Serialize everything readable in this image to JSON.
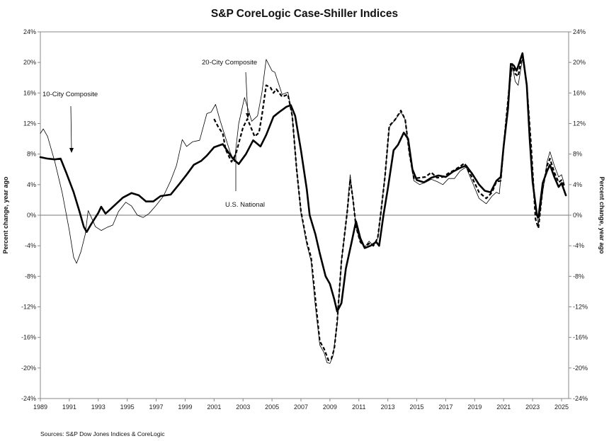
{
  "chart_data": {
    "type": "line",
    "title": "S&P CoreLogic Case-Shiller Indices",
    "ylabel": "Percent change, year ago",
    "ylabel_right": "Percent change, year ago",
    "source": "Sources: S&P Dow Jones Indices & CoreLogic",
    "xlim": [
      1989,
      2025.5
    ],
    "ylim": [
      -24,
      24
    ],
    "x_ticks": [
      "1989",
      "1991",
      "1993",
      "1995",
      "1997",
      "1999",
      "2001",
      "2003",
      "2005",
      "2007",
      "2009",
      "2011",
      "2013",
      "2015",
      "2017",
      "2019",
      "2021",
      "2023",
      "2025"
    ],
    "y_ticks": [
      "24%",
      "20%",
      "16%",
      "12%",
      "8%",
      "4%",
      "0%",
      "-4%",
      "-8%",
      "-12%",
      "-16%",
      "-20%",
      "-24%"
    ],
    "grid": false,
    "zero_line": true,
    "annotations": [
      {
        "text": "10-City Composite",
        "series": "10-City Composite"
      },
      {
        "text": "20-City Composite",
        "series": "20-City Composite"
      },
      {
        "text": "U.S. National",
        "series": "U.S. National"
      }
    ],
    "series": [
      {
        "name": "U.S. National",
        "style": "thick-solid",
        "color": "#000000",
        "points": [
          [
            1989,
            7.6
          ],
          [
            1989.5,
            7.4
          ],
          [
            1990,
            7.3
          ],
          [
            1990.4,
            7.4
          ],
          [
            1990.8,
            5.5
          ],
          [
            1991.3,
            3
          ],
          [
            1991.7,
            0.5
          ],
          [
            1992,
            -1.5
          ],
          [
            1992.2,
            -2.2
          ],
          [
            1992.5,
            -1.2
          ],
          [
            1993,
            0.3
          ],
          [
            1993.2,
            1.1
          ],
          [
            1993.5,
            0.2
          ],
          [
            1993.9,
            0.9
          ],
          [
            1994.3,
            1.6
          ],
          [
            1994.7,
            2.3
          ],
          [
            1995.3,
            2.9
          ],
          [
            1995.8,
            2.6
          ],
          [
            1996.3,
            1.8
          ],
          [
            1996.8,
            1.8
          ],
          [
            1997.3,
            2.5
          ],
          [
            1998,
            2.7
          ],
          [
            1998.6,
            4.1
          ],
          [
            1999.1,
            5.3
          ],
          [
            1999.6,
            6.6
          ],
          [
            2000.1,
            7.1
          ],
          [
            2000.5,
            7.8
          ],
          [
            2001,
            8.9
          ],
          [
            2001.6,
            9.3
          ],
          [
            2002,
            8.2
          ],
          [
            2002.3,
            7.4
          ],
          [
            2002.7,
            6.7
          ],
          [
            2003.2,
            8.0
          ],
          [
            2003.7,
            9.8
          ],
          [
            2004.2,
            9.0
          ],
          [
            2004.6,
            10.5
          ],
          [
            2005.1,
            12.9
          ],
          [
            2005.5,
            13.5
          ],
          [
            2006,
            14.2
          ],
          [
            2006.3,
            14.4
          ],
          [
            2006.6,
            13
          ],
          [
            2007,
            8.5
          ],
          [
            2007.4,
            3.4
          ],
          [
            2007.6,
            0
          ],
          [
            2008,
            -2.5
          ],
          [
            2008.3,
            -5
          ],
          [
            2008.7,
            -8
          ],
          [
            2009,
            -9
          ],
          [
            2009.3,
            -11
          ],
          [
            2009.5,
            -12.6
          ],
          [
            2009.8,
            -11.5
          ],
          [
            2010.1,
            -7
          ],
          [
            2010.5,
            -3.5
          ],
          [
            2010.8,
            -0.8
          ],
          [
            2011.1,
            -3
          ],
          [
            2011.4,
            -4.3
          ],
          [
            2011.8,
            -4
          ],
          [
            2012.2,
            -3.5
          ],
          [
            2012.4,
            -4
          ],
          [
            2012.7,
            0
          ],
          [
            2013,
            3.5
          ],
          [
            2013.4,
            8.5
          ],
          [
            2013.7,
            9.2
          ],
          [
            2014.1,
            10.8
          ],
          [
            2014.4,
            10
          ],
          [
            2014.7,
            6
          ],
          [
            2015,
            4.6
          ],
          [
            2015.5,
            4.3
          ],
          [
            2016,
            4.9
          ],
          [
            2016.5,
            5.2
          ],
          [
            2017,
            5.0
          ],
          [
            2017.5,
            5.7
          ],
          [
            2018,
            6.2
          ],
          [
            2018.4,
            6.5
          ],
          [
            2018.8,
            5.5
          ],
          [
            2019.3,
            4.0
          ],
          [
            2019.7,
            3.2
          ],
          [
            2020.1,
            3.0
          ],
          [
            2020.5,
            4.5
          ],
          [
            2020.8,
            5
          ],
          [
            2021,
            9
          ],
          [
            2021.3,
            14
          ],
          [
            2021.5,
            19.8
          ],
          [
            2021.7,
            19.6
          ],
          [
            2021.9,
            18.9
          ],
          [
            2022.3,
            21.2
          ],
          [
            2022.6,
            17
          ],
          [
            2022.8,
            10
          ],
          [
            2023,
            4.4
          ],
          [
            2023.3,
            0
          ],
          [
            2023.4,
            -0.3
          ],
          [
            2023.7,
            4.2
          ],
          [
            2024,
            5.8
          ],
          [
            2024.2,
            6.6
          ],
          [
            2024.5,
            5.0
          ],
          [
            2024.8,
            3.7
          ],
          [
            2025,
            4.2
          ],
          [
            2025.3,
            2.6
          ]
        ]
      },
      {
        "name": "10-City Composite",
        "style": "thin-solid",
        "color": "#000000",
        "points": [
          [
            1989,
            10.7
          ],
          [
            1989.2,
            11.3
          ],
          [
            1989.5,
            10.3
          ],
          [
            1990,
            7
          ],
          [
            1990.5,
            3
          ],
          [
            1991,
            -2
          ],
          [
            1991.3,
            -5.5
          ],
          [
            1991.5,
            -6.3
          ],
          [
            1991.8,
            -4.8
          ],
          [
            1992.1,
            -2.5
          ],
          [
            1992.3,
            0.6
          ],
          [
            1992.5,
            -0.2
          ],
          [
            1992.8,
            -1.5
          ],
          [
            1993.2,
            -2
          ],
          [
            1993.6,
            -1.6
          ],
          [
            1994,
            -1.3
          ],
          [
            1994.4,
            0.5
          ],
          [
            1994.9,
            1.7
          ],
          [
            1995.3,
            1.2
          ],
          [
            1995.7,
            0.0
          ],
          [
            1996.1,
            -0.3
          ],
          [
            1996.5,
            0.2
          ],
          [
            1997,
            1.3
          ],
          [
            1997.5,
            2.5
          ],
          [
            1998,
            4.5
          ],
          [
            1998.4,
            6.5
          ],
          [
            1998.8,
            9.9
          ],
          [
            1999.1,
            9.0
          ],
          [
            1999.5,
            9.6
          ],
          [
            2000,
            9.8
          ],
          [
            2000.5,
            13.3
          ],
          [
            2000.8,
            13.5
          ],
          [
            2001.1,
            14.5
          ],
          [
            2001.4,
            12.5
          ],
          [
            2001.7,
            10.7
          ],
          [
            2002.1,
            8.3
          ],
          [
            2002.4,
            7
          ],
          [
            2002.7,
            12
          ],
          [
            2003.1,
            15.4
          ],
          [
            2003.6,
            12.3
          ],
          [
            2004,
            13
          ],
          [
            2004.3,
            16
          ],
          [
            2004.6,
            20.4
          ],
          [
            2005,
            18.9
          ],
          [
            2005.2,
            18.7
          ],
          [
            2005.7,
            15.8
          ],
          [
            2006.1,
            16.1
          ],
          [
            2006.4,
            13
          ],
          [
            2006.7,
            6
          ],
          [
            2007,
            0.3
          ],
          [
            2007.4,
            -3.8
          ],
          [
            2007.7,
            -6
          ],
          [
            2008,
            -12
          ],
          [
            2008.3,
            -17
          ],
          [
            2008.6,
            -18
          ],
          [
            2008.8,
            -19.3
          ],
          [
            2009,
            -19.4
          ],
          [
            2009.2,
            -18.5
          ],
          [
            2009.5,
            -14.3
          ],
          [
            2009.8,
            -6
          ],
          [
            2010.2,
            0.5
          ],
          [
            2010.4,
            5.3
          ],
          [
            2010.6,
            2
          ],
          [
            2010.8,
            -1.5
          ],
          [
            2011.1,
            -3.5
          ],
          [
            2011.4,
            -4.2
          ],
          [
            2011.7,
            -3.4
          ],
          [
            2012,
            -4
          ],
          [
            2012.3,
            -3
          ],
          [
            2012.5,
            0
          ],
          [
            2012.8,
            5
          ],
          [
            2013.1,
            11.5
          ],
          [
            2013.5,
            12.5
          ],
          [
            2013.9,
            13.5
          ],
          [
            2014.2,
            12.5
          ],
          [
            2014.5,
            8
          ],
          [
            2014.8,
            4.5
          ],
          [
            2015.2,
            4.0
          ],
          [
            2015.6,
            4.3
          ],
          [
            2016,
            4.7
          ],
          [
            2016.4,
            4.4
          ],
          [
            2016.8,
            4.0
          ],
          [
            2017.2,
            4.8
          ],
          [
            2017.6,
            4.8
          ],
          [
            2018,
            5.8
          ],
          [
            2018.4,
            6.3
          ],
          [
            2018.8,
            4.5
          ],
          [
            2019.3,
            2.2
          ],
          [
            2019.8,
            1.5
          ],
          [
            2020.2,
            2.5
          ],
          [
            2020.5,
            3.0
          ],
          [
            2020.7,
            2.8
          ],
          [
            2021,
            9
          ],
          [
            2021.4,
            17
          ],
          [
            2021.6,
            19.5
          ],
          [
            2021.8,
            17.5
          ],
          [
            2022,
            17
          ],
          [
            2022.3,
            20.5
          ],
          [
            2022.6,
            17
          ],
          [
            2022.9,
            8
          ],
          [
            2023.2,
            1
          ],
          [
            2023.4,
            -1.2
          ],
          [
            2023.7,
            3
          ],
          [
            2024,
            7
          ],
          [
            2024.2,
            8.3
          ],
          [
            2024.5,
            6.5
          ],
          [
            2024.8,
            5.0
          ],
          [
            2025,
            5.3
          ],
          [
            2025.2,
            4.0
          ]
        ]
      },
      {
        "name": "20-City Composite",
        "style": "dashed",
        "color": "#000000",
        "points": [
          [
            2001,
            12.6
          ],
          [
            2001.3,
            11.5
          ],
          [
            2001.6,
            10.7
          ],
          [
            2001.8,
            8.6
          ],
          [
            2002.2,
            7.0
          ],
          [
            2002.5,
            8.0
          ],
          [
            2003,
            11.5
          ],
          [
            2003.3,
            12.6
          ],
          [
            2003.8,
            10.3
          ],
          [
            2004.1,
            10.8
          ],
          [
            2004.3,
            13
          ],
          [
            2004.6,
            17.0
          ],
          [
            2004.9,
            16.7
          ],
          [
            2005.1,
            16.0
          ],
          [
            2005.3,
            16.5
          ],
          [
            2005.7,
            15.5
          ],
          [
            2006.1,
            15.8
          ],
          [
            2006.4,
            13
          ],
          [
            2006.7,
            6
          ],
          [
            2007,
            0.5
          ],
          [
            2007.4,
            -3.5
          ],
          [
            2007.7,
            -5.5
          ],
          [
            2008,
            -11
          ],
          [
            2008.3,
            -16.5
          ],
          [
            2008.6,
            -17.5
          ],
          [
            2008.9,
            -19
          ],
          [
            2009.1,
            -18.8
          ],
          [
            2009.3,
            -17.5
          ],
          [
            2009.5,
            -14
          ],
          [
            2009.8,
            -6
          ],
          [
            2010.2,
            0.5
          ],
          [
            2010.4,
            4.7
          ],
          [
            2010.6,
            2
          ],
          [
            2010.8,
            -1.5
          ],
          [
            2011.1,
            -3.5
          ],
          [
            2011.4,
            -4.2
          ],
          [
            2011.7,
            -3.7
          ],
          [
            2012,
            -4
          ],
          [
            2012.3,
            -3
          ],
          [
            2012.5,
            0
          ],
          [
            2012.8,
            5
          ],
          [
            2013.1,
            11.7
          ],
          [
            2013.5,
            12.5
          ],
          [
            2013.9,
            13.7
          ],
          [
            2014.2,
            12.5
          ],
          [
            2014.5,
            8
          ],
          [
            2014.8,
            4.8
          ],
          [
            2015.2,
            4.9
          ],
          [
            2015.6,
            5.0
          ],
          [
            2016,
            5.6
          ],
          [
            2016.4,
            4.9
          ],
          [
            2016.8,
            5.0
          ],
          [
            2017.2,
            5.5
          ],
          [
            2017.6,
            5.9
          ],
          [
            2018,
            6.4
          ],
          [
            2018.3,
            6.8
          ],
          [
            2018.8,
            5
          ],
          [
            2019.3,
            3.0
          ],
          [
            2019.8,
            2.2
          ],
          [
            2020.2,
            3
          ],
          [
            2020.5,
            4.4
          ],
          [
            2020.8,
            4.5
          ],
          [
            2021,
            9
          ],
          [
            2021.4,
            17
          ],
          [
            2021.6,
            19.8
          ],
          [
            2021.8,
            18.5
          ],
          [
            2022,
            18.2
          ],
          [
            2022.3,
            21.2
          ],
          [
            2022.6,
            17
          ],
          [
            2022.9,
            9
          ],
          [
            2023.2,
            -0.5
          ],
          [
            2023.4,
            -1.7
          ],
          [
            2023.7,
            3.5
          ],
          [
            2024,
            6.5
          ],
          [
            2024.2,
            7.4
          ],
          [
            2024.5,
            5.6
          ],
          [
            2024.8,
            4.3
          ],
          [
            2025,
            4.6
          ],
          [
            2025.2,
            3.8
          ]
        ]
      }
    ]
  }
}
